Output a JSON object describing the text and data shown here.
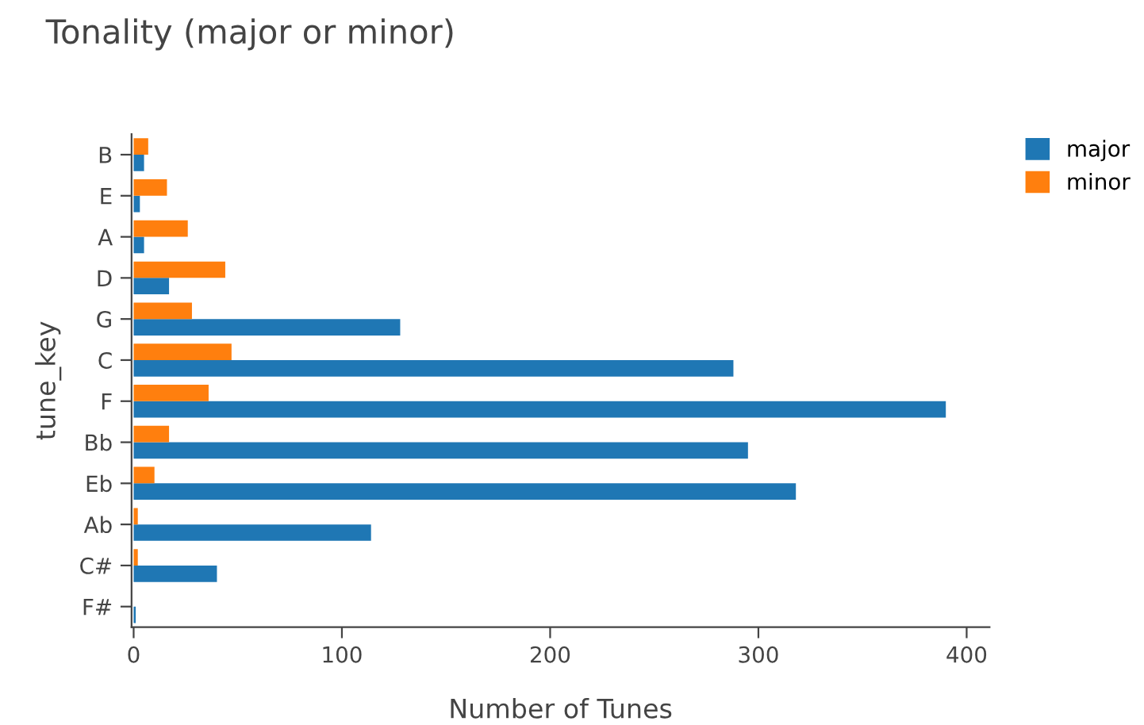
{
  "chart_data": {
    "type": "bar",
    "orientation": "horizontal",
    "title": "Tonality (major or minor)",
    "xlabel": "Number of Tunes",
    "ylabel": "tune_key",
    "categories": [
      "B",
      "E",
      "A",
      "D",
      "G",
      "C",
      "F",
      "Bb",
      "Eb",
      "Ab",
      "C#",
      "F#"
    ],
    "series": [
      {
        "name": "major",
        "color": "#1f77b4",
        "values": [
          5,
          3,
          5,
          17,
          128,
          288,
          390,
          295,
          318,
          114,
          40,
          1
        ]
      },
      {
        "name": "minor",
        "color": "#ff7f0e",
        "values": [
          7,
          16,
          26,
          44,
          28,
          47,
          36,
          17,
          10,
          2,
          2,
          0
        ]
      }
    ],
    "xlim": [
      -1,
      411
    ],
    "xticks": [
      0,
      100,
      200,
      300,
      400
    ],
    "grid": false,
    "legend": "top right"
  }
}
